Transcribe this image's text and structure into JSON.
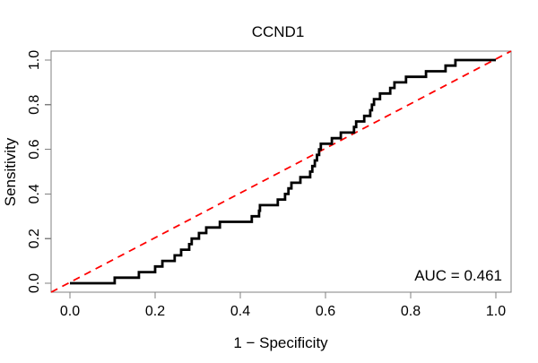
{
  "chart": {
    "title": "CCND1",
    "xlabel": "1 − Specificity",
    "ylabel": "Sensitivity",
    "auc_label": "AUC = 0.461"
  },
  "chart_data": {
    "type": "line",
    "subtype": "roc-step-curve",
    "title": "CCND1",
    "xlabel": "1 − Specificity",
    "ylabel": "Sensitivity",
    "xlim": [
      0,
      1
    ],
    "ylim": [
      0,
      1
    ],
    "grid": false,
    "x_axis": {
      "ticks": [
        0.0,
        0.2,
        0.4,
        0.6,
        0.8,
        1.0
      ],
      "tick_labels": [
        "0.0",
        "0.2",
        "0.4",
        "0.6",
        "0.8",
        "1.0"
      ]
    },
    "y_axis": {
      "ticks": [
        0.0,
        0.2,
        0.4,
        0.6,
        0.8,
        1.0
      ],
      "tick_labels": [
        "0.0",
        "0.2",
        "0.4",
        "0.6",
        "0.8",
        "1.0"
      ]
    },
    "annotation": {
      "text": "AUC = 0.461",
      "auc_value": 0.461,
      "position": "bottom-right"
    },
    "series": [
      {
        "name": "ROC curve",
        "color": "#000000",
        "line_style": "solid",
        "line_width": 2.8,
        "draw": "step",
        "points": [
          [
            0.0,
            0.0
          ],
          [
            0.105,
            0.025
          ],
          [
            0.162,
            0.05
          ],
          [
            0.2,
            0.075
          ],
          [
            0.217,
            0.1
          ],
          [
            0.246,
            0.125
          ],
          [
            0.261,
            0.15
          ],
          [
            0.28,
            0.175
          ],
          [
            0.286,
            0.2
          ],
          [
            0.303,
            0.225
          ],
          [
            0.32,
            0.25
          ],
          [
            0.352,
            0.275
          ],
          [
            0.427,
            0.3
          ],
          [
            0.444,
            0.325
          ],
          [
            0.446,
            0.35
          ],
          [
            0.488,
            0.375
          ],
          [
            0.505,
            0.4
          ],
          [
            0.513,
            0.425
          ],
          [
            0.52,
            0.45
          ],
          [
            0.541,
            0.475
          ],
          [
            0.564,
            0.5
          ],
          [
            0.569,
            0.525
          ],
          [
            0.575,
            0.55
          ],
          [
            0.58,
            0.575
          ],
          [
            0.585,
            0.6
          ],
          [
            0.589,
            0.625
          ],
          [
            0.615,
            0.65
          ],
          [
            0.636,
            0.675
          ],
          [
            0.667,
            0.7
          ],
          [
            0.672,
            0.725
          ],
          [
            0.691,
            0.75
          ],
          [
            0.705,
            0.775
          ],
          [
            0.709,
            0.8
          ],
          [
            0.714,
            0.825
          ],
          [
            0.728,
            0.85
          ],
          [
            0.752,
            0.875
          ],
          [
            0.762,
            0.9
          ],
          [
            0.789,
            0.925
          ],
          [
            0.836,
            0.95
          ],
          [
            0.882,
            0.975
          ],
          [
            0.905,
            1.0
          ],
          [
            1.0,
            1.0
          ]
        ]
      },
      {
        "name": "Chance diagonal",
        "color": "#FF0000",
        "line_style": "dashed",
        "line_width": 1.8,
        "draw": "line",
        "points": [
          [
            0,
            0
          ],
          [
            1,
            1
          ]
        ]
      }
    ]
  }
}
